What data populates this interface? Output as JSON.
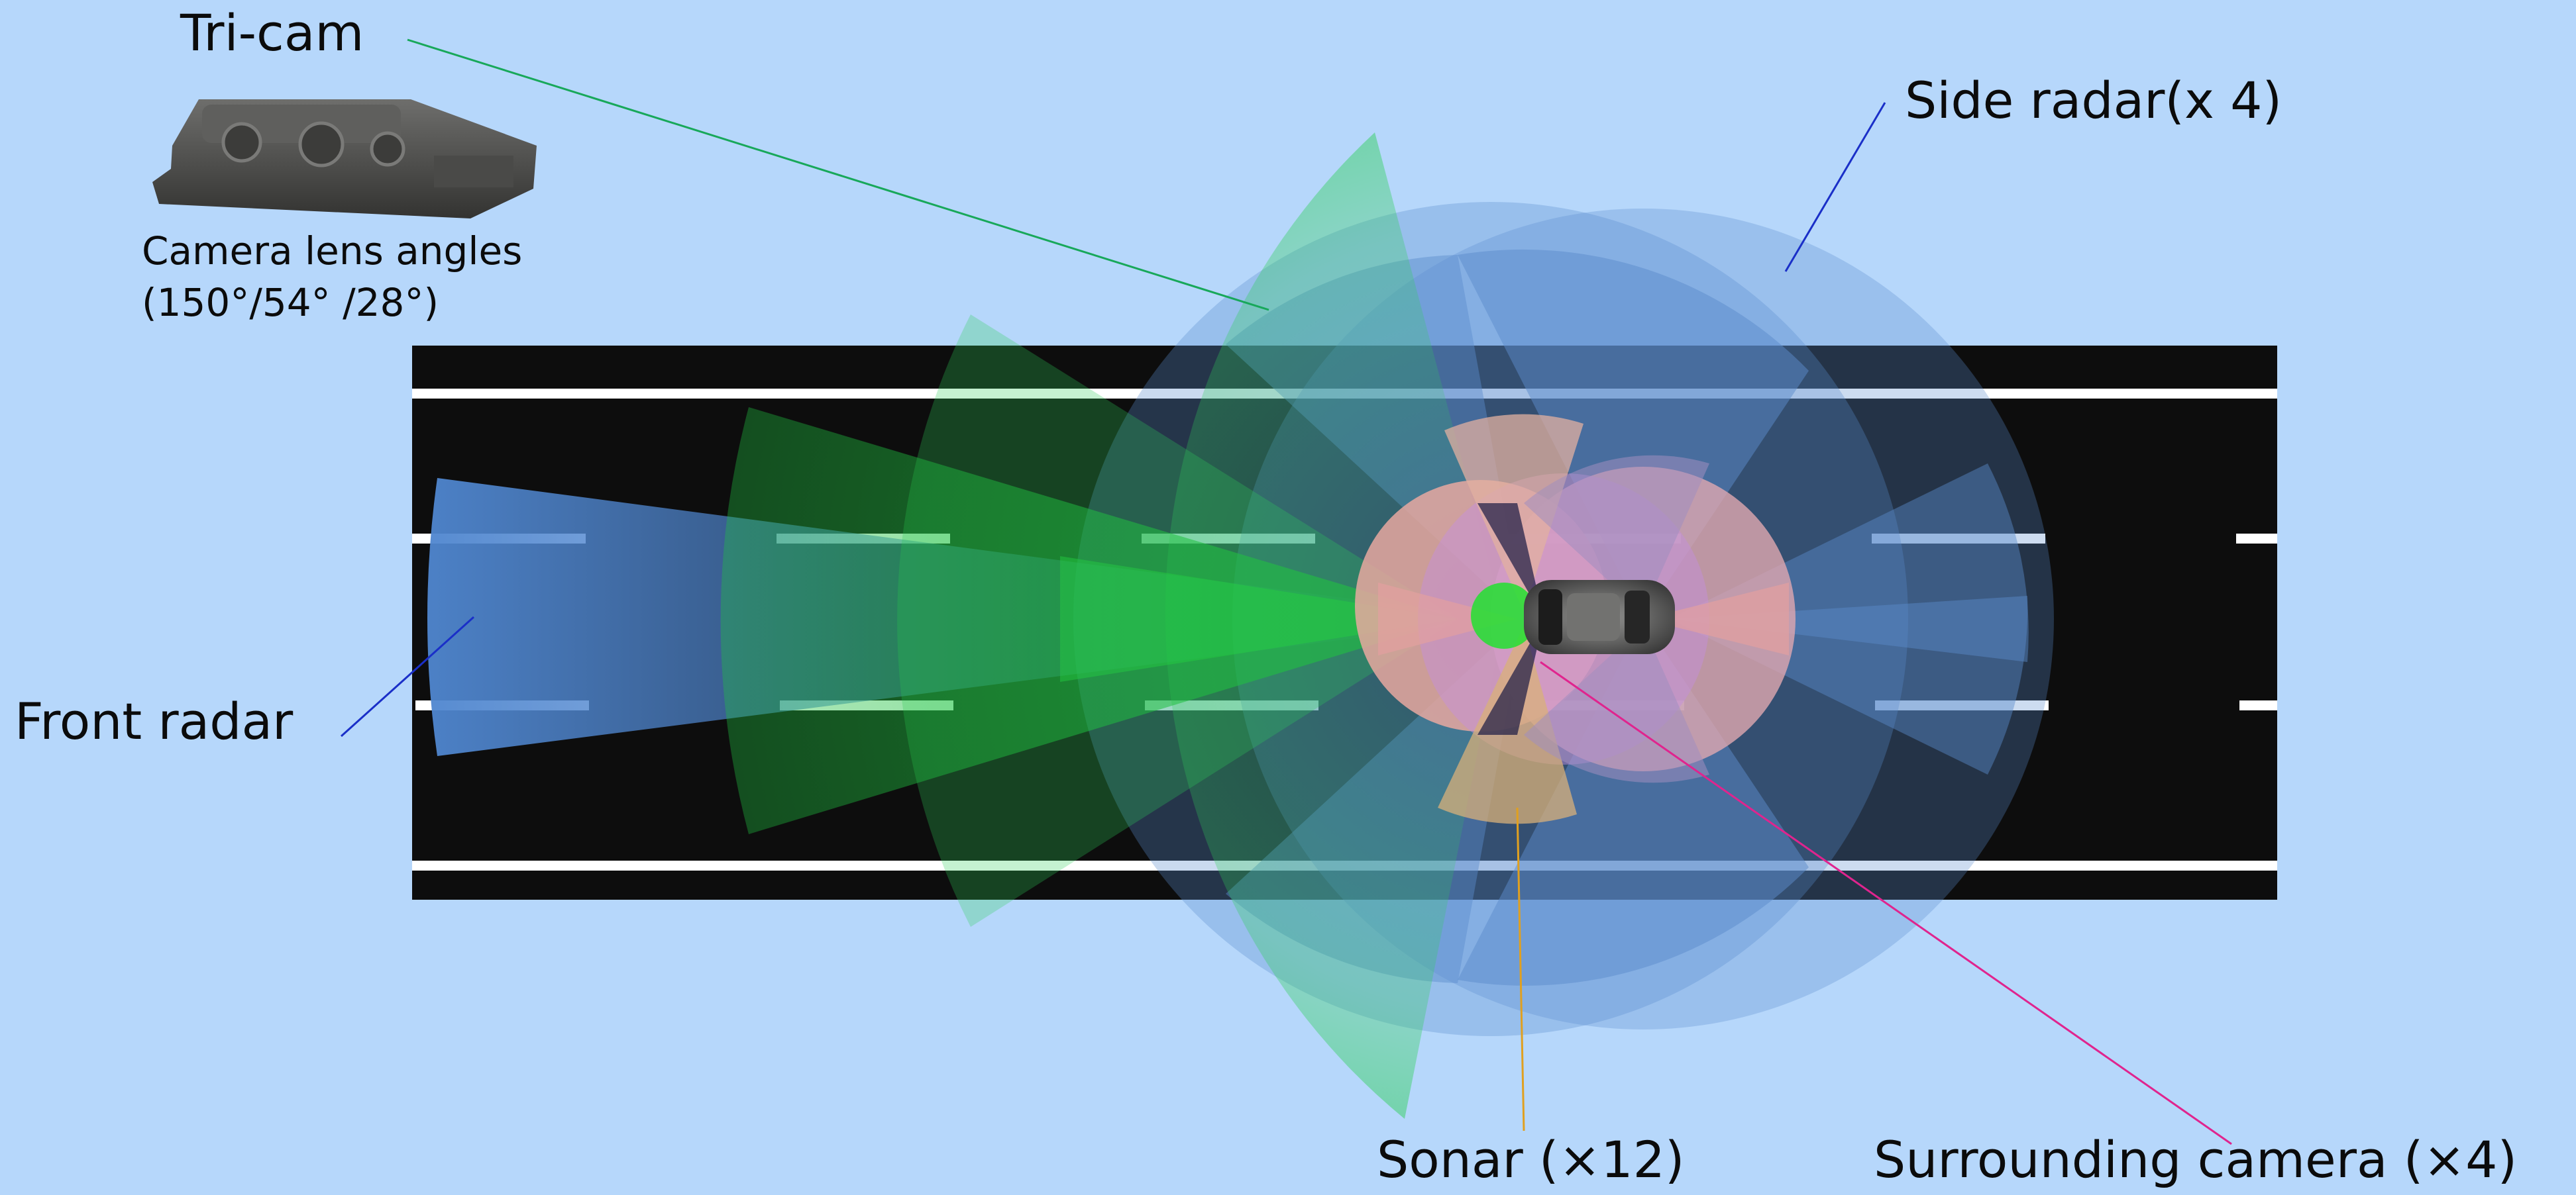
{
  "labels": {
    "tricam": "Tri-cam",
    "side_radar": "Side radar(x 4)",
    "front_radar": "Front radar",
    "sonar": "Sonar (×12)",
    "surrounding_camera": "Surrounding camera (×4)",
    "camera_lens_title": "Camera lens angles",
    "camera_lens_values": "(150°/54° /28°)"
  },
  "colors": {
    "background": "#b6d7fb",
    "road": "#0d0d0d",
    "lane_marking": "#ffffff",
    "tricam_zone": "#2ecf58",
    "side_radar_zone": "#5b8ccc",
    "front_radar_zone": "#4f86cf",
    "sonar_zone": "#e2b0a0",
    "surround_camera_zone": "#c48ee0",
    "tricam_leader": "#18a85a",
    "side_radar_leader": "#1a2fc8",
    "front_radar_leader": "#1a2fc8",
    "sonar_leader": "#e0a020",
    "surround_leader": "#e0248e"
  },
  "icons": {
    "tricam_unit": "camera-module-icon",
    "vehicle": "car-icon"
  }
}
